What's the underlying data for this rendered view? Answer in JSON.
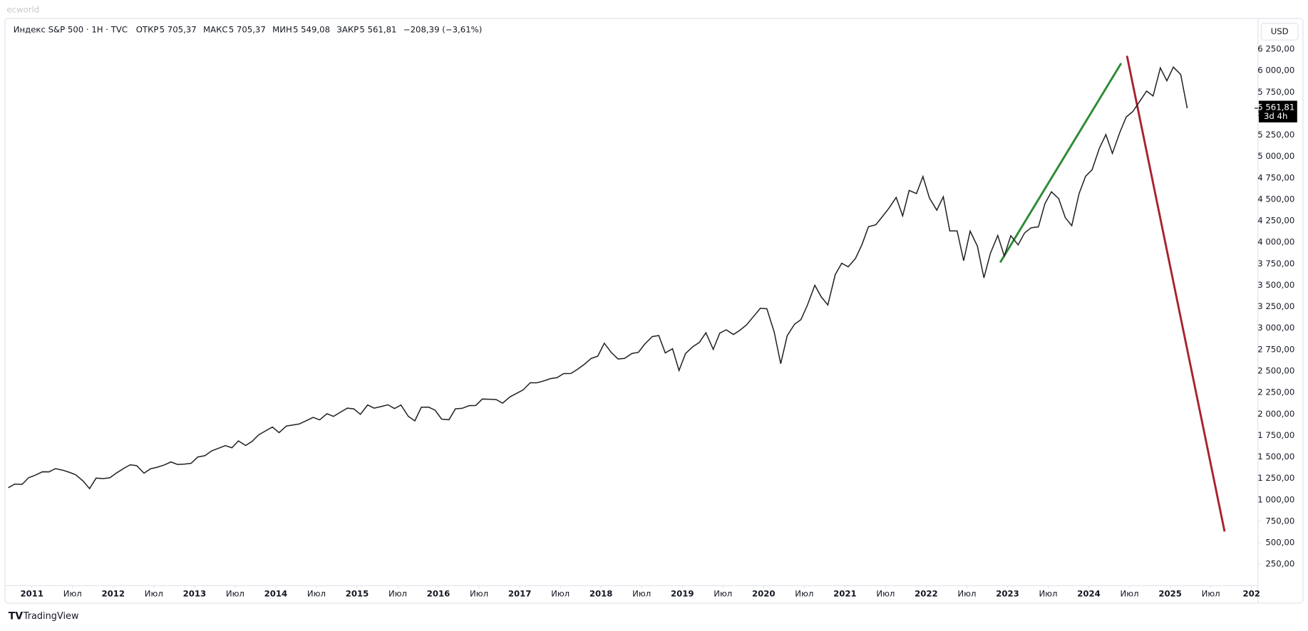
{
  "watermark": "ecworld",
  "brand": "TradingView",
  "chart_data": {
    "type": "line",
    "title": "Индекс S&P 500 · 1H · TVC",
    "ohlc": [
      {
        "label": "ОТКР",
        "value": "5 705,37"
      },
      {
        "label": "МАКС",
        "value": "5 705,37"
      },
      {
        "label": "МИН",
        "value": "5 549,08"
      },
      {
        "label": "ЗАКР",
        "value": "5 561,81"
      }
    ],
    "change": "−208,39 (−3,61%)",
    "currency": "USD",
    "last_price": {
      "value": 5561.81,
      "label": "5 561,81"
    },
    "countdown": "3d 4h",
    "color": "#222222",
    "x": [
      2010.71,
      2010.79,
      2010.88,
      2010.96,
      2011.04,
      2011.13,
      2011.21,
      2011.29,
      2011.38,
      2011.46,
      2011.54,
      2011.63,
      2011.71,
      2011.79,
      2011.88,
      2011.96,
      2012.04,
      2012.13,
      2012.21,
      2012.29,
      2012.38,
      2012.46,
      2012.54,
      2012.63,
      2012.71,
      2012.79,
      2012.88,
      2012.96,
      2013.04,
      2013.13,
      2013.21,
      2013.29,
      2013.38,
      2013.46,
      2013.54,
      2013.63,
      2013.71,
      2013.79,
      2013.88,
      2013.96,
      2014.04,
      2014.13,
      2014.21,
      2014.29,
      2014.38,
      2014.46,
      2014.54,
      2014.63,
      2014.71,
      2014.79,
      2014.88,
      2014.96,
      2015.04,
      2015.13,
      2015.21,
      2015.29,
      2015.38,
      2015.46,
      2015.54,
      2015.63,
      2015.71,
      2015.79,
      2015.88,
      2015.96,
      2016.04,
      2016.13,
      2016.21,
      2016.29,
      2016.38,
      2016.46,
      2016.54,
      2016.63,
      2016.71,
      2016.79,
      2016.88,
      2016.96,
      2017.04,
      2017.13,
      2017.21,
      2017.29,
      2017.38,
      2017.46,
      2017.54,
      2017.63,
      2017.71,
      2017.79,
      2017.88,
      2017.96,
      2018.04,
      2018.13,
      2018.21,
      2018.29,
      2018.38,
      2018.46,
      2018.54,
      2018.63,
      2018.71,
      2018.79,
      2018.88,
      2018.96,
      2019.04,
      2019.13,
      2019.21,
      2019.29,
      2019.38,
      2019.46,
      2019.54,
      2019.63,
      2019.71,
      2019.79,
      2019.88,
      2019.96,
      2020.04,
      2020.13,
      2020.21,
      2020.29,
      2020.38,
      2020.46,
      2020.54,
      2020.63,
      2020.71,
      2020.79,
      2020.88,
      2020.96,
      2021.04,
      2021.13,
      2021.21,
      2021.29,
      2021.38,
      2021.46,
      2021.54,
      2021.63,
      2021.71,
      2021.79,
      2021.88,
      2021.96,
      2022.04,
      2022.13,
      2022.21,
      2022.29,
      2022.38,
      2022.46,
      2022.54,
      2022.63,
      2022.71,
      2022.79,
      2022.88,
      2022.96,
      2023.04,
      2023.13,
      2023.21,
      2023.29,
      2023.38,
      2023.46,
      2023.54,
      2023.63,
      2023.71,
      2023.79,
      2023.88,
      2023.96,
      2024.04,
      2024.13,
      2024.21,
      2024.29,
      2024.38,
      2024.46,
      2024.54,
      2024.63,
      2024.71,
      2024.79,
      2024.88,
      2024.96,
      2025.04,
      2025.13,
      2025.21
    ],
    "values": [
      1141,
      1183,
      1180,
      1258,
      1286,
      1327,
      1326,
      1364,
      1345,
      1321,
      1292,
      1219,
      1131,
      1253,
      1247,
      1258,
      1312,
      1366,
      1408,
      1398,
      1310,
      1362,
      1379,
      1406,
      1441,
      1412,
      1416,
      1426,
      1498,
      1515,
      1569,
      1598,
      1631,
      1606,
      1686,
      1633,
      1682,
      1757,
      1806,
      1848,
      1783,
      1859,
      1872,
      1884,
      1924,
      1960,
      1931,
      2003,
      1972,
      2018,
      2068,
      2059,
      1995,
      2105,
      2068,
      2086,
      2107,
      2063,
      2104,
      1972,
      1920,
      2079,
      2080,
      2044,
      1940,
      1932,
      2060,
      2065,
      2097,
      2099,
      2174,
      2171,
      2168,
      2126,
      2199,
      2239,
      2279,
      2364,
      2363,
      2384,
      2412,
      2423,
      2470,
      2472,
      2519,
      2575,
      2648,
      2674,
      2824,
      2714,
      2641,
      2648,
      2705,
      2718,
      2816,
      2902,
      2914,
      2712,
      2760,
      2507,
      2704,
      2784,
      2834,
      2946,
      2752,
      2942,
      2980,
      2926,
      2977,
      3038,
      3141,
      3231,
      3226,
      2954,
      2585,
      2912,
      3044,
      3100,
      3271,
      3500,
      3363,
      3270,
      3622,
      3756,
      3714,
      3811,
      3973,
      4181,
      4204,
      4298,
      4395,
      4523,
      4308,
      4605,
      4567,
      4766,
      4516,
      4374,
      4530,
      4132,
      4132,
      3785,
      4130,
      3955,
      3586,
      3872,
      4080,
      3840,
      4077,
      3970,
      4109,
      4169,
      4180,
      4450,
      4589,
      4508,
      4288,
      4194,
      4568,
      4770,
      4846,
      5096,
      5254,
      5036,
      5278,
      5460,
      5522,
      5648,
      5762,
      5705,
      6032,
      5882,
      6041,
      5955,
      5561.81
    ],
    "xlim": [
      2010.69,
      2026.08
    ],
    "ylim": [
      0,
      6580
    ],
    "xticks": [
      2011,
      {
        "value": 2011.5,
        "label": "Июл"
      },
      2012,
      {
        "value": 2012.5,
        "label": "Июл"
      },
      2013,
      {
        "value": 2013.5,
        "label": "Июл"
      },
      2014,
      {
        "value": 2014.5,
        "label": "Июл"
      },
      2015,
      {
        "value": 2015.5,
        "label": "Июл"
      },
      2016,
      {
        "value": 2016.5,
        "label": "Июл"
      },
      2017,
      {
        "value": 2017.5,
        "label": "Июл"
      },
      2018,
      {
        "value": 2018.5,
        "label": "Июл"
      },
      2019,
      {
        "value": 2019.5,
        "label": "Июл"
      },
      2020,
      {
        "value": 2020.5,
        "label": "Июл"
      },
      2021,
      {
        "value": 2021.5,
        "label": "Июл"
      },
      2022,
      {
        "value": 2022.5,
        "label": "Июл"
      },
      2023,
      {
        "value": 2023.5,
        "label": "Июл"
      },
      2024,
      {
        "value": 2024.5,
        "label": "Июл"
      },
      2025,
      {
        "value": 2025.5,
        "label": "Июл"
      },
      {
        "value": 2026,
        "label": "202"
      }
    ],
    "yticks": [
      {
        "value": 250,
        "label": "250,00"
      },
      {
        "value": 500,
        "label": "500,00"
      },
      {
        "value": 750,
        "label": "750,00"
      },
      {
        "value": 1000,
        "label": "1 000,00"
      },
      {
        "value": 1250,
        "label": "1 250,00"
      },
      {
        "value": 1500,
        "label": "1 500,00"
      },
      {
        "value": 1750,
        "label": "1 750,00"
      },
      {
        "value": 2000,
        "label": "2 000,00"
      },
      {
        "value": 2250,
        "label": "2 250,00"
      },
      {
        "value": 2500,
        "label": "2 500,00"
      },
      {
        "value": 2750,
        "label": "2 750,00"
      },
      {
        "value": 3000,
        "label": "3 000,00"
      },
      {
        "value": 3250,
        "label": "3 250,00"
      },
      {
        "value": 3500,
        "label": "3 500,00"
      },
      {
        "value": 3750,
        "label": "3 750,00"
      },
      {
        "value": 4000,
        "label": "4 000,00"
      },
      {
        "value": 4250,
        "label": "4 250,00"
      },
      {
        "value": 4500,
        "label": "4 500,00"
      },
      {
        "value": 4750,
        "label": "4 750,00"
      },
      {
        "value": 5000,
        "label": "5 000,00"
      },
      {
        "value": 5250,
        "label": "5 250,00"
      },
      {
        "value": 5500,
        "label": "5 500,00"
      },
      {
        "value": 5750,
        "label": "5 750,00"
      },
      {
        "value": 6000,
        "label": "6 000,00"
      },
      {
        "value": 6250,
        "label": "6 250,00"
      }
    ],
    "grid": false
  }
}
